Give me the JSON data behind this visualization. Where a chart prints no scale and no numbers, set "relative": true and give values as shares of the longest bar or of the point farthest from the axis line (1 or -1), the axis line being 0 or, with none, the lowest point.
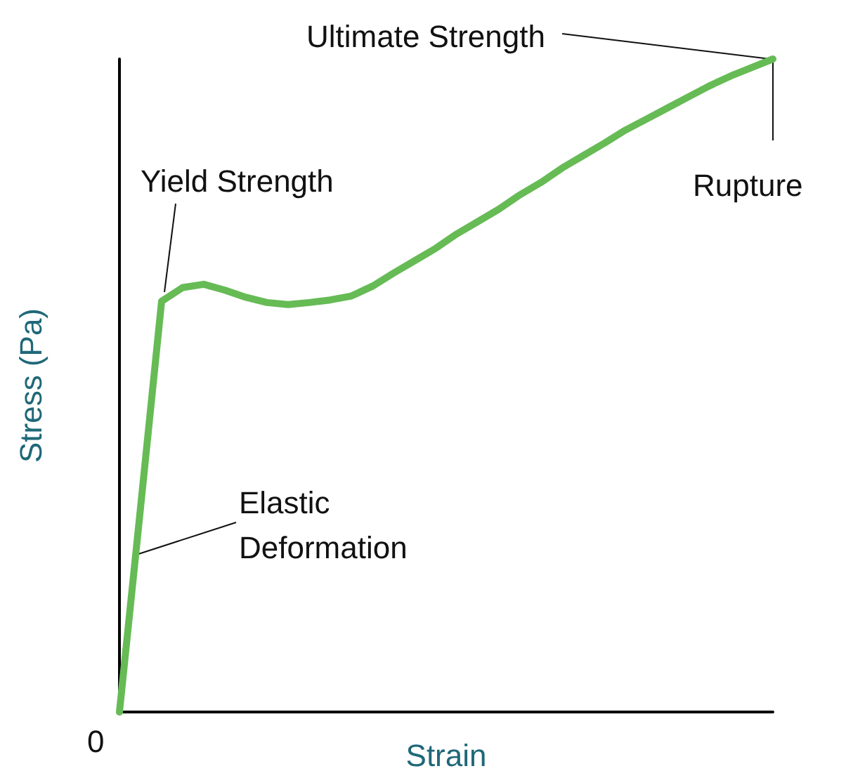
{
  "chart_data": {
    "type": "line",
    "relative": true,
    "xlabel": "Strain",
    "ylabel": "Stress (Pa)",
    "marker": "none",
    "line_style": "solid",
    "categories": [
      null,
      null,
      null,
      null,
      null,
      null,
      null,
      null,
      null,
      null,
      null,
      null,
      null,
      null,
      null,
      null,
      null,
      null,
      null,
      null,
      null,
      null,
      null,
      null,
      null,
      null,
      null,
      null,
      null,
      null,
      null,
      null
    ],
    "series": [
      {
        "color": "#66bb55",
        "values": [
          0,
          0.313,
          0.629,
          0.65,
          0.655,
          0.646,
          0.635,
          0.627,
          0.624,
          0.627,
          0.631,
          0.637,
          0.652,
          0.672,
          0.691,
          0.71,
          0.732,
          0.751,
          0.77,
          0.792,
          0.811,
          0.833,
          0.852,
          0.871,
          0.891,
          0.908,
          0.925,
          0.942,
          0.959,
          0.974,
          0.987,
          1
        ]
      }
    ],
    "annotations": [
      "Ultimate Strength",
      "Rupture",
      "Yield Strength",
      "Elastic Deformation",
      "0"
    ]
  }
}
